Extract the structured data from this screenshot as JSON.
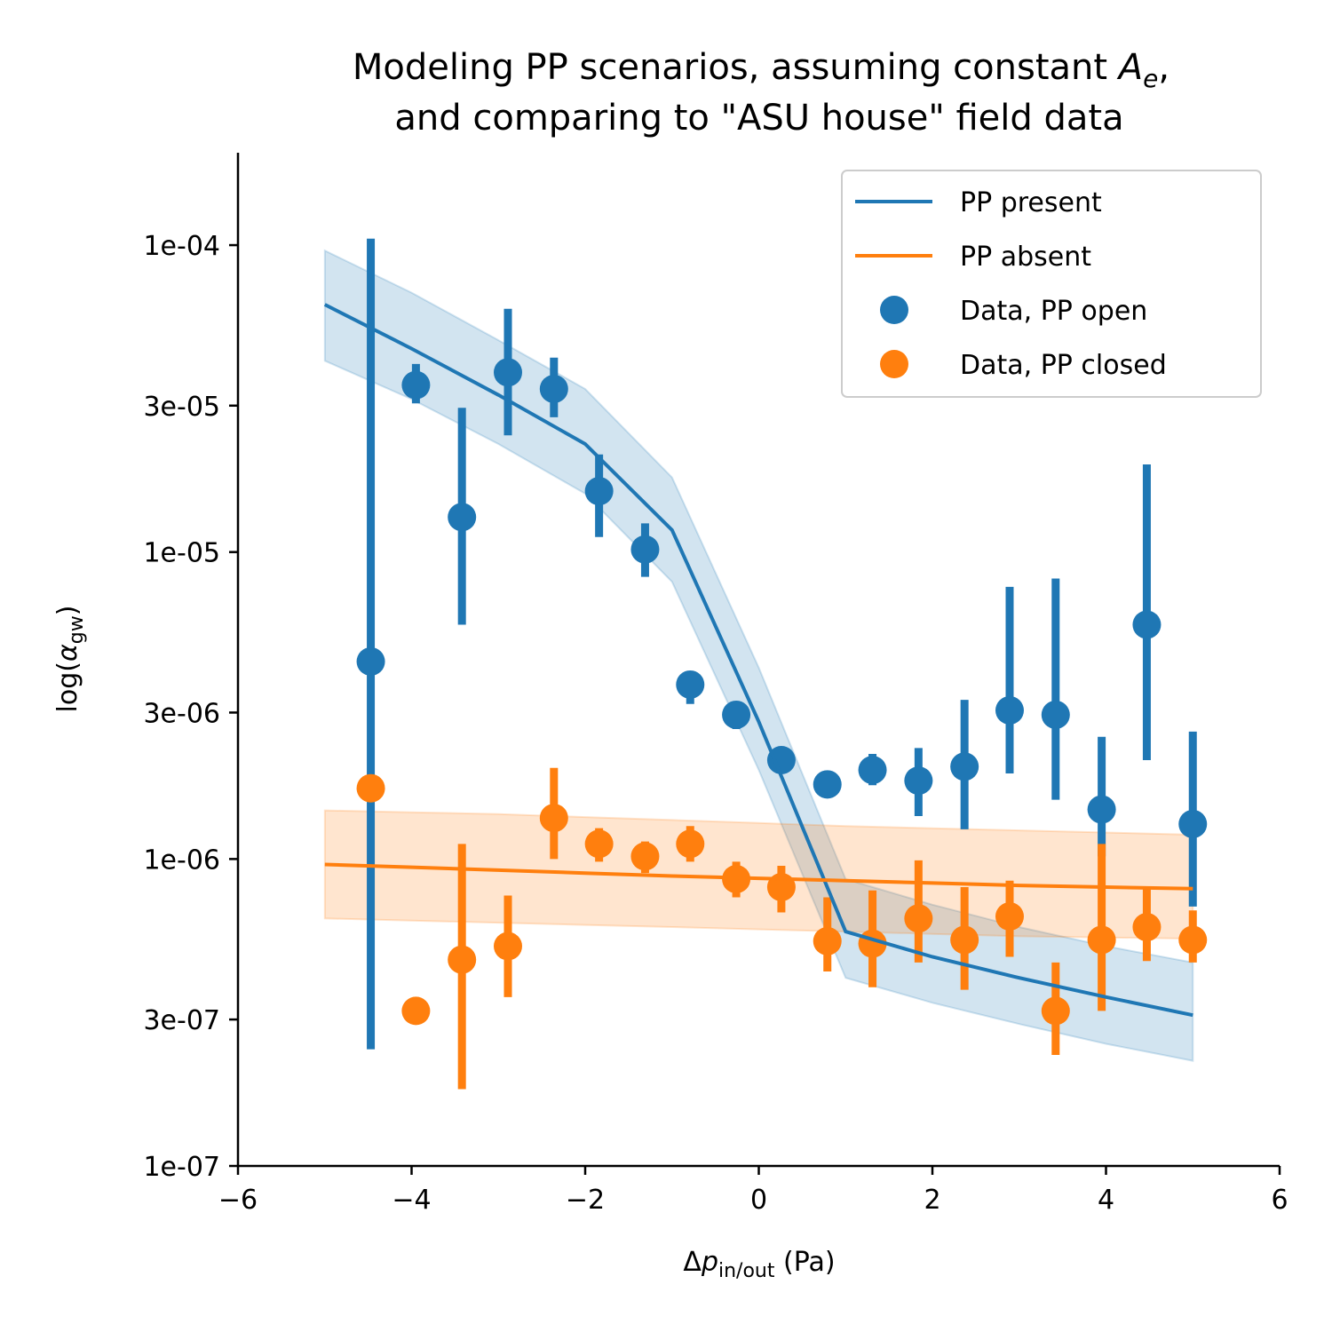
{
  "chart_data": {
    "type": "scatter",
    "title": {
      "line1_prefix": "Modeling PP scenarios, assuming constant ",
      "line1_symbol": "A",
      "line1_symbol_sub": "e",
      "line1_suffix": ",",
      "line2": "and comparing to \"ASU house\" field data"
    },
    "xlabel": {
      "prefix": "Δ",
      "symbol": "p",
      "sub": "in/out",
      "suffix": " (Pa)"
    },
    "ylabel": {
      "prefix": "log(",
      "symbol": "α",
      "sub": "gw",
      "suffix": ")"
    },
    "xlim": [
      -6,
      6
    ],
    "ylim": [
      1e-07,
      0.0002
    ],
    "yscale": "log",
    "grid": false,
    "legend_position": "upper right",
    "xticks": [
      {
        "v": -6,
        "label": "−6"
      },
      {
        "v": -4,
        "label": "−4"
      },
      {
        "v": -2,
        "label": "−2"
      },
      {
        "v": 0,
        "label": "0"
      },
      {
        "v": 2,
        "label": "2"
      },
      {
        "v": 4,
        "label": "4"
      },
      {
        "v": 6,
        "label": "6"
      }
    ],
    "yticks": [
      {
        "v": 1e-07,
        "label": "1e-07"
      },
      {
        "v": 3e-07,
        "label": "3e-07"
      },
      {
        "v": 1e-06,
        "label": "1e-06"
      },
      {
        "v": 3e-06,
        "label": "3e-06"
      },
      {
        "v": 1e-05,
        "label": "1e-05"
      },
      {
        "v": 3e-05,
        "label": "3e-05"
      },
      {
        "v": 0.0001,
        "label": "1e-04"
      }
    ],
    "colors": {
      "present": "#1f77b4",
      "absent": "#ff7f0e"
    },
    "legend": [
      {
        "label": "PP present",
        "kind": "line",
        "color": "#1f77b4"
      },
      {
        "label": "PP absent",
        "kind": "line",
        "color": "#ff7f0e"
      },
      {
        "label": "Data, PP open",
        "kind": "marker",
        "color": "#1f77b4"
      },
      {
        "label": "Data, PP closed",
        "kind": "marker",
        "color": "#ff7f0e"
      }
    ],
    "model_present": {
      "x": [
        -5,
        -4,
        -3,
        -2,
        -1,
        0,
        1,
        2,
        3,
        4,
        5
      ],
      "y": [
        6.4e-05,
        4.6e-05,
        3.25e-05,
        2.25e-05,
        1.18e-05,
        2.8e-06,
        5.8e-07,
        4.8e-07,
        4.1e-07,
        3.55e-07,
        3.1e-07
      ],
      "lower": [
        4.2e-05,
        3.15e-05,
        2.25e-05,
        1.55e-05,
        8e-06,
        1.95e-06,
        4.1e-07,
        3.4e-07,
        2.9e-07,
        2.5e-07,
        2.2e-07
      ],
      "upper": [
        9.6e-05,
        7e-05,
        4.9e-05,
        3.4e-05,
        1.75e-05,
        4.2e-06,
        8.6e-07,
        7.1e-07,
        6e-07,
        5.2e-07,
        4.6e-07
      ]
    },
    "model_absent": {
      "x": [
        -5,
        -4,
        -3,
        -2,
        -1,
        0,
        1,
        2,
        3,
        4,
        5
      ],
      "y": [
        9.6e-07,
        9.4e-07,
        9.2e-07,
        9e-07,
        8.8e-07,
        8.65e-07,
        8.5e-07,
        8.35e-07,
        8.2e-07,
        8.1e-07,
        8e-07
      ],
      "lower": [
        6.4e-07,
        6.3e-07,
        6.2e-07,
        6.1e-07,
        6e-07,
        5.9e-07,
        5.8e-07,
        5.7e-07,
        5.6e-07,
        5.55e-07,
        5.5e-07
      ],
      "upper": [
        1.44e-06,
        1.42e-06,
        1.4e-06,
        1.37e-06,
        1.34e-06,
        1.31e-06,
        1.28e-06,
        1.26e-06,
        1.24e-06,
        1.22e-06,
        1.2e-06
      ]
    },
    "data_open": {
      "x": [
        -4.47,
        -3.95,
        -3.42,
        -2.89,
        -2.36,
        -1.84,
        -1.31,
        -0.79,
        -0.26,
        0.26,
        0.79,
        1.31,
        1.84,
        2.37,
        2.89,
        3.42,
        3.95,
        4.47,
        5.0
      ],
      "y": [
        4.4e-06,
        3.5e-05,
        1.3e-05,
        3.85e-05,
        3.4e-05,
        1.58e-05,
        1.02e-05,
        3.7e-06,
        2.95e-06,
        2.1e-06,
        1.75e-06,
        1.95e-06,
        1.8e-06,
        2e-06,
        3.05e-06,
        2.95e-06,
        1.45e-06,
        5.8e-06,
        1.3e-06
      ],
      "err_low": [
        2.4e-07,
        3.05e-05,
        5.8e-06,
        2.4e-05,
        2.75e-05,
        1.12e-05,
        8.3e-06,
        3.2e-06,
        2.65e-06,
        1.92e-06,
        1.6e-06,
        1.74e-06,
        1.38e-06,
        1.25e-06,
        1.9e-06,
        1.56e-06,
        1.02e-06,
        2.1e-06,
        7e-07
      ],
      "err_high": [
        0.000105,
        4.1e-05,
        2.95e-05,
        6.2e-05,
        4.3e-05,
        2.08e-05,
        1.24e-05,
        4.1e-06,
        3.25e-06,
        2.3e-06,
        1.9e-06,
        2.2e-06,
        2.3e-06,
        3.3e-06,
        7.7e-06,
        8.2e-06,
        2.5e-06,
        1.93e-05,
        2.6e-06
      ]
    },
    "data_closed": {
      "x": [
        -4.47,
        -3.95,
        -3.42,
        -2.89,
        -2.36,
        -1.84,
        -1.31,
        -0.79,
        -0.26,
        0.26,
        0.79,
        1.31,
        1.84,
        2.37,
        2.89,
        3.42,
        3.95,
        4.47,
        5.0
      ],
      "y": [
        1.7e-06,
        3.2e-07,
        4.7e-07,
        5.2e-07,
        1.36e-06,
        1.12e-06,
        1.02e-06,
        1.12e-06,
        8.6e-07,
        8.1e-07,
        5.4e-07,
        5.3e-07,
        6.4e-07,
        5.45e-07,
        6.5e-07,
        3.2e-07,
        5.45e-07,
        6e-07,
        5.45e-07
      ],
      "err_low": [
        1.7e-06,
        3.2e-07,
        1.78e-07,
        3.55e-07,
        1e-06,
        9.8e-07,
        9e-07,
        9.8e-07,
        7.5e-07,
        6.7e-07,
        4.3e-07,
        3.82e-07,
        4.6e-07,
        3.75e-07,
        4.8e-07,
        2.3e-07,
        3.2e-07,
        4.65e-07,
        4.6e-07
      ],
      "err_high": [
        1.7e-06,
        3.2e-07,
        1.12e-06,
        7.6e-07,
        1.98e-06,
        1.26e-06,
        1.14e-06,
        1.28e-06,
        9.8e-07,
        9.5e-07,
        7.5e-07,
        7.9e-07,
        9.9e-07,
        8.1e-07,
        8.5e-07,
        4.6e-07,
        1.12e-06,
        8.1e-07,
        6.8e-07
      ]
    }
  }
}
